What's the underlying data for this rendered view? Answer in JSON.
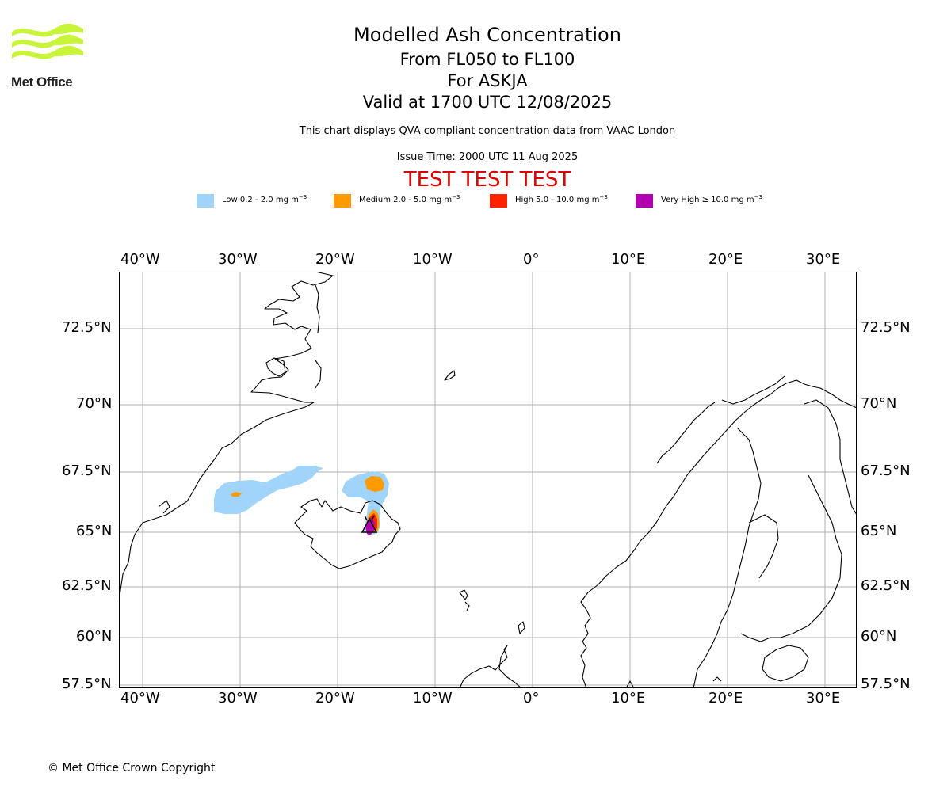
{
  "logo": {
    "text": "Met Office",
    "color": "#c8f53a"
  },
  "header": {
    "title": "Modelled Ash Concentration",
    "levels": "From FL050 to FL100",
    "volcano": "For ASKJA",
    "valid": "Valid at 1700 UTC 12/08/2025",
    "note": "This chart displays QVA compliant concentration data from VAAC London",
    "issue": "Issue Time: 2000 UTC 11 Aug 2025",
    "test_banner": "TEST TEST TEST",
    "test_color": "#dd0000"
  },
  "legend": [
    {
      "label": "Low 0.2 - 2.0 mg m",
      "unit_exp": "−3",
      "color": "#a0d4fa"
    },
    {
      "label": "Medium 2.0 - 5.0 mg m",
      "unit_exp": "−3",
      "color": "#ff9a00"
    },
    {
      "label": "High 5.0 - 10.0 mg m",
      "unit_exp": "−3",
      "color": "#ff2400"
    },
    {
      "label": "Very High ≥ 10.0 mg m",
      "unit_exp": "−3",
      "color": "#b000b0"
    }
  ],
  "map": {
    "lon_ticks": [
      "40°W",
      "30°W",
      "20°W",
      "10°W",
      "0°",
      "10°E",
      "20°E",
      "30°E"
    ],
    "lat_ticks": [
      "72.5°N",
      "70°N",
      "67.5°N",
      "65°N",
      "62.5°N",
      "60°N",
      "57.5°N"
    ],
    "grid": true
  },
  "footer": {
    "copyright": "© Met Office Crown Copyright"
  }
}
